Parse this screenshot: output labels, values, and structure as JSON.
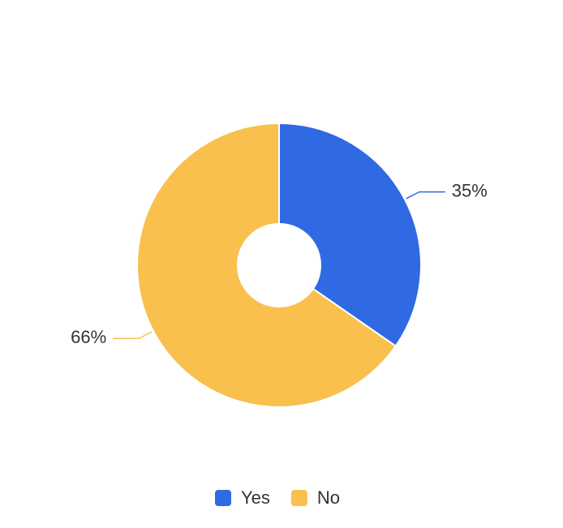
{
  "chart_data": {
    "type": "pie",
    "donut": true,
    "categories": [
      "Yes",
      "No"
    ],
    "values": [
      35,
      66
    ],
    "value_labels": [
      "35%",
      "66%"
    ],
    "colors": [
      "#2f6ae3",
      "#f9c04e"
    ],
    "legend": "bottom"
  }
}
